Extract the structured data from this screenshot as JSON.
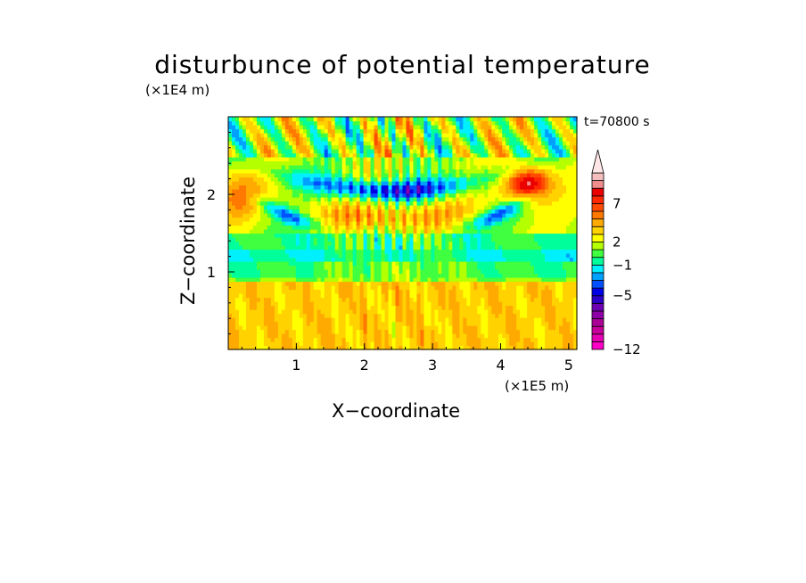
{
  "chart_data": {
    "type": "heatmap",
    "title": "disturbunce of potential temperature",
    "time_label": "t=70800 s",
    "xlabel": "X−coordinate",
    "ylabel": "Z−coordinate",
    "x_unit": "(×1E5 m)",
    "y_unit": "(×1E4 m)",
    "xlim": [
      0,
      5.12
    ],
    "ylim": [
      0,
      3.0
    ],
    "x_ticks": [
      "1",
      "2",
      "3",
      "4",
      "5"
    ],
    "y_ticks": [
      "1",
      "2"
    ],
    "colorbar": {
      "levels": [
        -12,
        -11,
        -10,
        -9,
        -8,
        -7,
        -6,
        -5,
        -4,
        -3,
        -2,
        -1,
        0,
        1,
        2,
        3,
        4,
        5,
        6,
        7,
        8,
        9,
        10
      ],
      "tick_labels": [
        "−12",
        "−5",
        "−1",
        "2",
        "7"
      ],
      "tick_values": [
        -12,
        -5,
        -1,
        2,
        7
      ],
      "extend": "max",
      "colors": [
        "#ff00c8",
        "#e600b4",
        "#c8009b",
        "#aa0096",
        "#8c00a5",
        "#6e00b4",
        "#2d00c8",
        "#0000e6",
        "#0050ff",
        "#00a0ff",
        "#00f0ff",
        "#00ff9b",
        "#40ff40",
        "#b4ff00",
        "#ffff00",
        "#ffd200",
        "#ffaa00",
        "#ff7800",
        "#ff4b00",
        "#ff2800",
        "#eb0000",
        "#f08c8c",
        "#f5bebe",
        "#ffe6e6"
      ]
    },
    "grid": false,
    "legend": "colorbar-right"
  }
}
